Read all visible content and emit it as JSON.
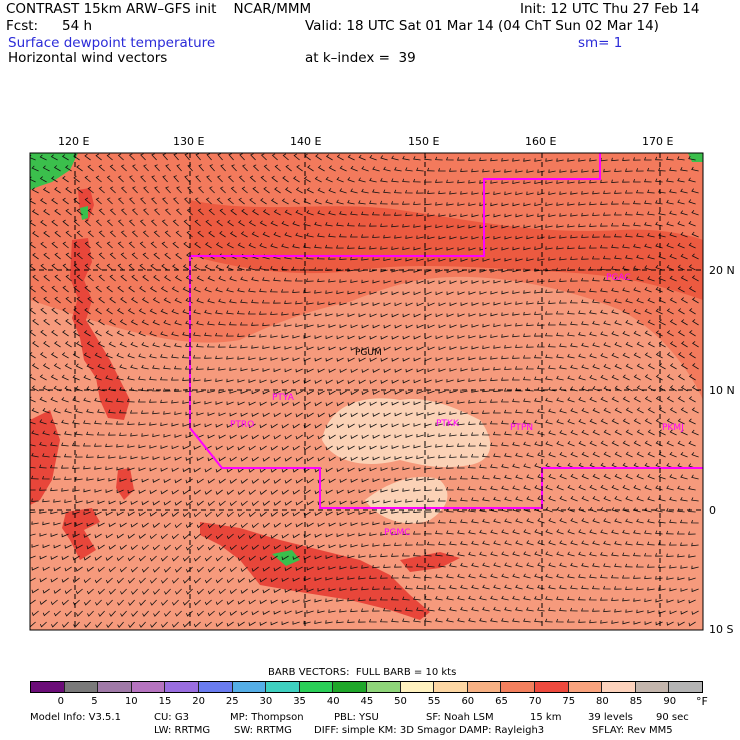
{
  "header": {
    "title_left": "CONTRAST 15km ARW–GFS init    NCAR/MMM",
    "init": "Init: 12 UTC Thu 27 Feb 14",
    "fcst_label": "Fcst:",
    "fcst_value": "54 h",
    "valid": "Valid: 18 UTC Sat 01 Mar 14 (04 ChT Sun 02 Mar 14)",
    "field1": "Surface dewpoint temperature",
    "smoothing": "sm= 1",
    "field2": "Horizontal wind vectors",
    "kindex": "at k–index =  39"
  },
  "map": {
    "lon_labels": [
      "120 E",
      "130 E",
      "140 E",
      "150 E",
      "160 E",
      "170 E"
    ],
    "lat_labels": [
      "20 N",
      "10 N",
      "0",
      "10 S"
    ],
    "station_labels": [
      "PGUM",
      "PTYA",
      "PTRO",
      "PTKK",
      "PTPN",
      "PKMJ",
      "PGMC",
      "PGAC"
    ],
    "colors": {
      "ocean_dark": "#ec5a40",
      "ocean_mid": "#f37a5c",
      "ocean_light": "#f69a7c",
      "band_pale": "#fbd2b6",
      "land": "#e8463a",
      "green": "#3bbf4c",
      "boundary": "#ff00ff",
      "station_text": "#ff00ff"
    }
  },
  "barb_title": "BARB VECTORS:  FULL BARB = 10 kts",
  "colorbar": {
    "ticks": [
      "0",
      "5",
      "10",
      "15",
      "20",
      "25",
      "30",
      "35",
      "40",
      "45",
      "50",
      "55",
      "60",
      "65",
      "70",
      "75",
      "80",
      "85",
      "90"
    ],
    "unit": "°F",
    "colors": [
      "#6b0d78",
      "#7a7a7a",
      "#a07aa8",
      "#b674c0",
      "#9a6ee0",
      "#6a7cf0",
      "#55aee6",
      "#3fd0c0",
      "#2bcf58",
      "#1fa72a",
      "#8fd57a",
      "#fff2c0",
      "#fdd7a4",
      "#f7b184",
      "#f3805e",
      "#ee4a3e",
      "#f9a37e",
      "#fdd3bd",
      "#c4b6ad",
      "#b4b4b4"
    ]
  },
  "footer": {
    "line1": [
      "Model Info: V3.5.1",
      "CU: G3",
      "MP: Thompson",
      "PBL: YSU",
      "SF: Noah LSM",
      "15 km",
      "39 levels",
      "90 sec"
    ],
    "line2": [
      "LW: RRTMG",
      "SW: RRTMG",
      "DIFF: simple KM: 3D Smagor DAMP: Rayleigh3",
      "SFLAY: Rev MM5"
    ]
  }
}
